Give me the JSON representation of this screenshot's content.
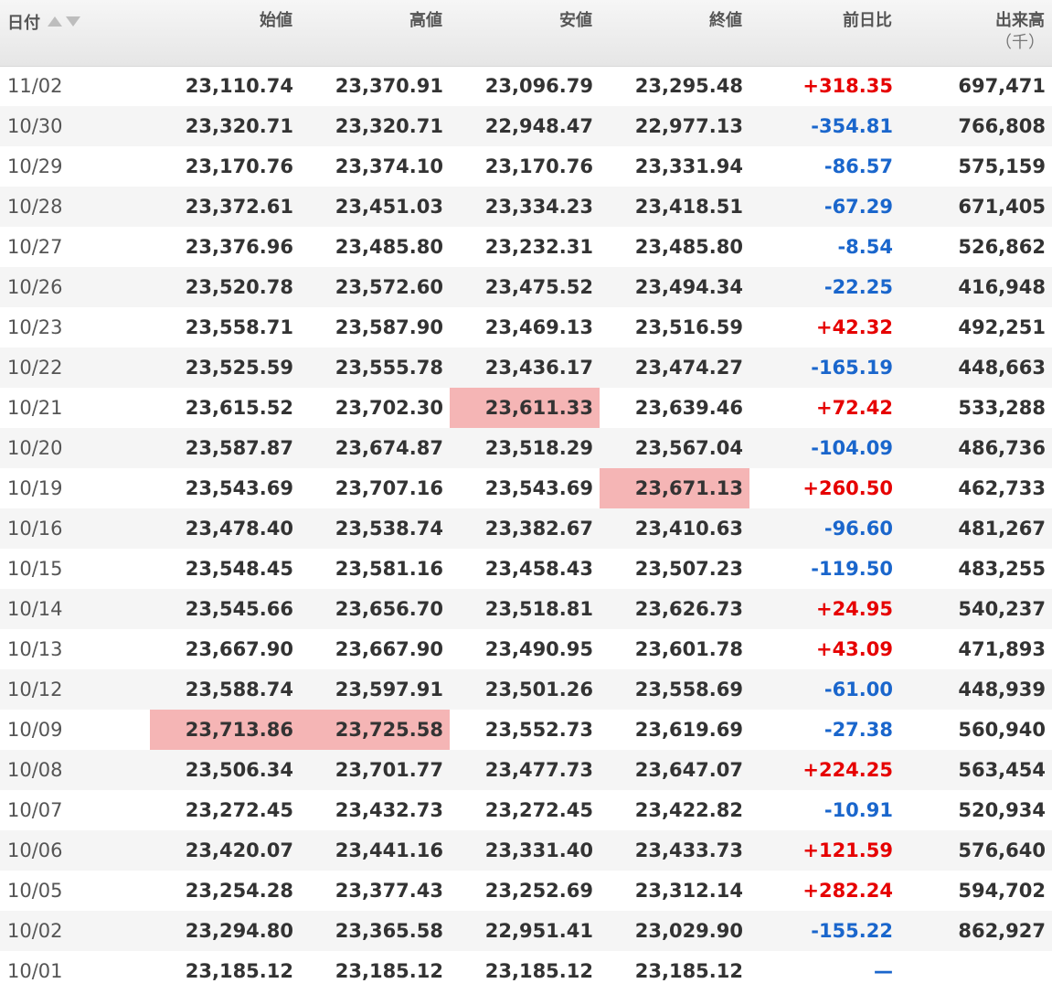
{
  "header": {
    "date": "日付",
    "open": "始値",
    "high": "高値",
    "low": "安値",
    "close": "終値",
    "change": "前日比",
    "volume": "出来高",
    "volume_unit": "（千）",
    "sort_icons": [
      "sort-up-icon",
      "sort-down-icon"
    ]
  },
  "colors": {
    "up": "#e60000",
    "down": "#1a66cc",
    "highlight": "#f5b5b5",
    "header_bg": "#eaeaea",
    "stripe": "#f5f5f5"
  },
  "rows": [
    {
      "date": "11/02",
      "open": "23,110.74",
      "high": "23,370.91",
      "low": "23,096.79",
      "close": "23,295.48",
      "change": "+318.35",
      "dir": "up",
      "volume": "697,471"
    },
    {
      "date": "10/30",
      "open": "23,320.71",
      "high": "23,320.71",
      "low": "22,948.47",
      "close": "22,977.13",
      "change": "-354.81",
      "dir": "down",
      "volume": "766,808"
    },
    {
      "date": "10/29",
      "open": "23,170.76",
      "high": "23,374.10",
      "low": "23,170.76",
      "close": "23,331.94",
      "change": "-86.57",
      "dir": "down",
      "volume": "575,159"
    },
    {
      "date": "10/28",
      "open": "23,372.61",
      "high": "23,451.03",
      "low": "23,334.23",
      "close": "23,418.51",
      "change": "-67.29",
      "dir": "down",
      "volume": "671,405"
    },
    {
      "date": "10/27",
      "open": "23,376.96",
      "high": "23,485.80",
      "low": "23,232.31",
      "close": "23,485.80",
      "change": "-8.54",
      "dir": "down",
      "volume": "526,862"
    },
    {
      "date": "10/26",
      "open": "23,520.78",
      "high": "23,572.60",
      "low": "23,475.52",
      "close": "23,494.34",
      "change": "-22.25",
      "dir": "down",
      "volume": "416,948"
    },
    {
      "date": "10/23",
      "open": "23,558.71",
      "high": "23,587.90",
      "low": "23,469.13",
      "close": "23,516.59",
      "change": "+42.32",
      "dir": "up",
      "volume": "492,251"
    },
    {
      "date": "10/22",
      "open": "23,525.59",
      "high": "23,555.78",
      "low": "23,436.17",
      "close": "23,474.27",
      "change": "-165.19",
      "dir": "down",
      "volume": "448,663"
    },
    {
      "date": "10/21",
      "open": "23,615.52",
      "high": "23,702.30",
      "low": "23,611.33",
      "close": "23,639.46",
      "change": "+72.42",
      "dir": "up",
      "volume": "533,288",
      "hl": [
        "low"
      ]
    },
    {
      "date": "10/20",
      "open": "23,587.87",
      "high": "23,674.87",
      "low": "23,518.29",
      "close": "23,567.04",
      "change": "-104.09",
      "dir": "down",
      "volume": "486,736"
    },
    {
      "date": "10/19",
      "open": "23,543.69",
      "high": "23,707.16",
      "low": "23,543.69",
      "close": "23,671.13",
      "change": "+260.50",
      "dir": "up",
      "volume": "462,733",
      "hl": [
        "close"
      ]
    },
    {
      "date": "10/16",
      "open": "23,478.40",
      "high": "23,538.74",
      "low": "23,382.67",
      "close": "23,410.63",
      "change": "-96.60",
      "dir": "down",
      "volume": "481,267"
    },
    {
      "date": "10/15",
      "open": "23,548.45",
      "high": "23,581.16",
      "low": "23,458.43",
      "close": "23,507.23",
      "change": "-119.50",
      "dir": "down",
      "volume": "483,255"
    },
    {
      "date": "10/14",
      "open": "23,545.66",
      "high": "23,656.70",
      "low": "23,518.81",
      "close": "23,626.73",
      "change": "+24.95",
      "dir": "up",
      "volume": "540,237"
    },
    {
      "date": "10/13",
      "open": "23,667.90",
      "high": "23,667.90",
      "low": "23,490.95",
      "close": "23,601.78",
      "change": "+43.09",
      "dir": "up",
      "volume": "471,893"
    },
    {
      "date": "10/12",
      "open": "23,588.74",
      "high": "23,597.91",
      "low": "23,501.26",
      "close": "23,558.69",
      "change": "-61.00",
      "dir": "down",
      "volume": "448,939"
    },
    {
      "date": "10/09",
      "open": "23,713.86",
      "high": "23,725.58",
      "low": "23,552.73",
      "close": "23,619.69",
      "change": "-27.38",
      "dir": "down",
      "volume": "560,940",
      "hl": [
        "open",
        "high"
      ]
    },
    {
      "date": "10/08",
      "open": "23,506.34",
      "high": "23,701.77",
      "low": "23,477.73",
      "close": "23,647.07",
      "change": "+224.25",
      "dir": "up",
      "volume": "563,454"
    },
    {
      "date": "10/07",
      "open": "23,272.45",
      "high": "23,432.73",
      "low": "23,272.45",
      "close": "23,422.82",
      "change": "-10.91",
      "dir": "down",
      "volume": "520,934"
    },
    {
      "date": "10/06",
      "open": "23,420.07",
      "high": "23,441.16",
      "low": "23,331.40",
      "close": "23,433.73",
      "change": "+121.59",
      "dir": "up",
      "volume": "576,640"
    },
    {
      "date": "10/05",
      "open": "23,254.28",
      "high": "23,377.43",
      "low": "23,252.69",
      "close": "23,312.14",
      "change": "+282.24",
      "dir": "up",
      "volume": "594,702"
    },
    {
      "date": "10/02",
      "open": "23,294.80",
      "high": "23,365.58",
      "low": "22,951.41",
      "close": "23,029.90",
      "change": "-155.22",
      "dir": "down",
      "volume": "862,927"
    },
    {
      "date": "10/01",
      "open": "23,185.12",
      "high": "23,185.12",
      "low": "23,185.12",
      "close": "23,185.12",
      "change": "—",
      "dir": "flat",
      "volume": ""
    }
  ]
}
